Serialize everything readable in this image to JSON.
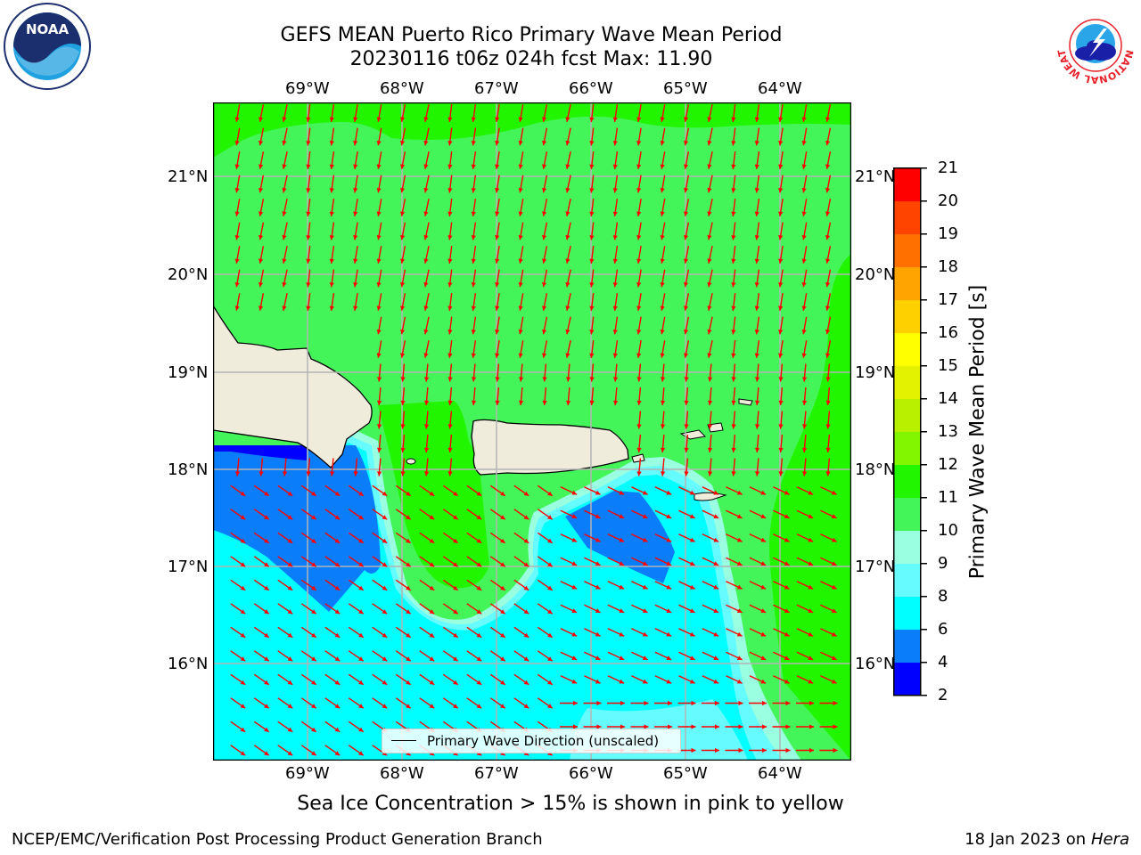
{
  "title": {
    "line1": "GEFS MEAN Puerto Rico Primary Wave Mean Period",
    "line2": "20230116 t06z 024h fcst   Max: 11.90"
  },
  "logos": {
    "noaa_text": "NOAA",
    "nws_text": "NATIONAL WEATHER SERVICE"
  },
  "map": {
    "lon_ticks": [
      "69°W",
      "68°W",
      "67°W",
      "66°W",
      "65°W",
      "64°W"
    ],
    "lat_ticks": [
      "21°N",
      "20°N",
      "19°N",
      "18°N",
      "17°N",
      "16°N"
    ],
    "arrow_color": "#ff0000",
    "land_color": "#efecdc"
  },
  "legend": {
    "label": "Primary Wave Direction (unscaled)"
  },
  "colorbar": {
    "label": "Primary Wave Mean Period [s]",
    "ticks": [
      "2",
      "4",
      "6",
      "8",
      "9",
      "10",
      "11",
      "12",
      "13",
      "14",
      "15",
      "16",
      "17",
      "18",
      "19",
      "20",
      "21"
    ],
    "colors": [
      "#0000ff",
      "#0a7dfa",
      "#00ffff",
      "#66fcff",
      "#99ffe0",
      "#44f55a",
      "#22f500",
      "#82f500",
      "#b8f000",
      "#e3f200",
      "#ffff00",
      "#ffd000",
      "#ffa400",
      "#ff7000",
      "#ff4400",
      "#ff0000"
    ]
  },
  "subtitle": "Sea Ice Concentration > 15% is shown in pink to yellow",
  "footer": {
    "left": "NCEP/EMC/Verification Post Processing Product Generation Branch",
    "right_date": "18 Jan 2023 on ",
    "right_host": "Hera"
  }
}
